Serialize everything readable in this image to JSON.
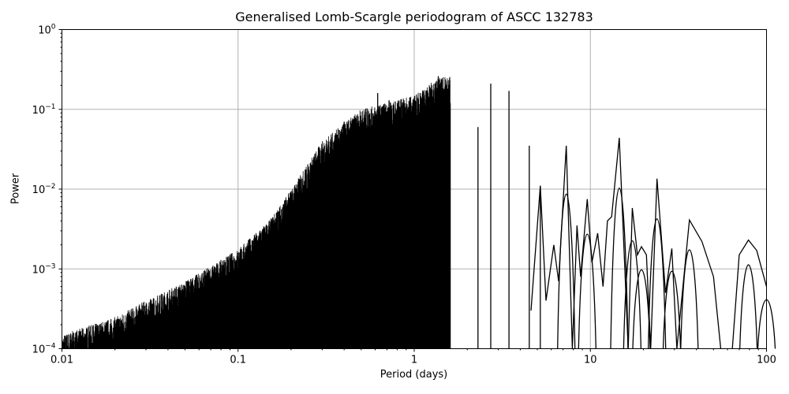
{
  "chart_data": {
    "type": "line",
    "title": "Generalised Lomb-Scargle periodogram of ASCC 132783",
    "xlabel": "Period (days)",
    "ylabel": "Power",
    "xscale": "log",
    "yscale": "log",
    "xlim": [
      0.01,
      100
    ],
    "ylim": [
      0.0001,
      1
    ],
    "grid": true,
    "x_ticks": [
      0.01,
      0.1,
      1,
      10,
      100
    ],
    "x_tick_labels": [
      "0.01",
      "0.1",
      "1",
      "10",
      "100"
    ],
    "y_ticks": [
      0.0001,
      0.001,
      0.01,
      0.1,
      1
    ],
    "y_tick_labels": [
      "10^-4",
      "10^-3",
      "10^-2",
      "10^-1",
      "10^0"
    ],
    "line_color": "#000000",
    "notable_peaks": [
      {
        "period": 0.4,
        "power": 0.07
      },
      {
        "period": 0.53,
        "power": 0.1
      },
      {
        "period": 0.62,
        "power": 0.16
      },
      {
        "period": 0.72,
        "power": 0.13
      },
      {
        "period": 0.9,
        "power": 0.09
      },
      {
        "period": 1.08,
        "power": 0.16
      },
      {
        "period": 1.37,
        "power": 0.26
      },
      {
        "period": 1.6,
        "power": 0.12
      },
      {
        "period": 2.3,
        "power": 0.06
      },
      {
        "period": 2.72,
        "power": 0.21
      },
      {
        "period": 3.45,
        "power": 0.17
      },
      {
        "period": 4.5,
        "power": 0.035
      },
      {
        "period": 5.2,
        "power": 0.011
      },
      {
        "period": 7.3,
        "power": 0.035
      },
      {
        "period": 9.6,
        "power": 0.0075
      },
      {
        "period": 14.6,
        "power": 0.044
      },
      {
        "period": 17.3,
        "power": 0.0058
      },
      {
        "period": 19.5,
        "power": 0.0019
      },
      {
        "period": 23.9,
        "power": 0.0135
      },
      {
        "period": 29.0,
        "power": 0.0018
      },
      {
        "period": 36.5,
        "power": 0.0041
      },
      {
        "period": 79.0,
        "power": 0.0023
      },
      {
        "period": 100.0,
        "power": 0.0006
      }
    ],
    "envelope": [
      {
        "period": 0.01,
        "power": 0.00015
      },
      {
        "period": 0.02,
        "power": 0.00025
      },
      {
        "period": 0.03,
        "power": 0.0004
      },
      {
        "period": 0.05,
        "power": 0.0007
      },
      {
        "period": 0.08,
        "power": 0.0013
      },
      {
        "period": 0.1,
        "power": 0.0018
      },
      {
        "period": 0.15,
        "power": 0.004
      },
      {
        "period": 0.2,
        "power": 0.01
      },
      {
        "period": 0.3,
        "power": 0.04
      },
      {
        "period": 0.5,
        "power": 0.1
      },
      {
        "period": 1.0,
        "power": 0.15
      },
      {
        "period": 1.4,
        "power": 0.26
      }
    ]
  }
}
